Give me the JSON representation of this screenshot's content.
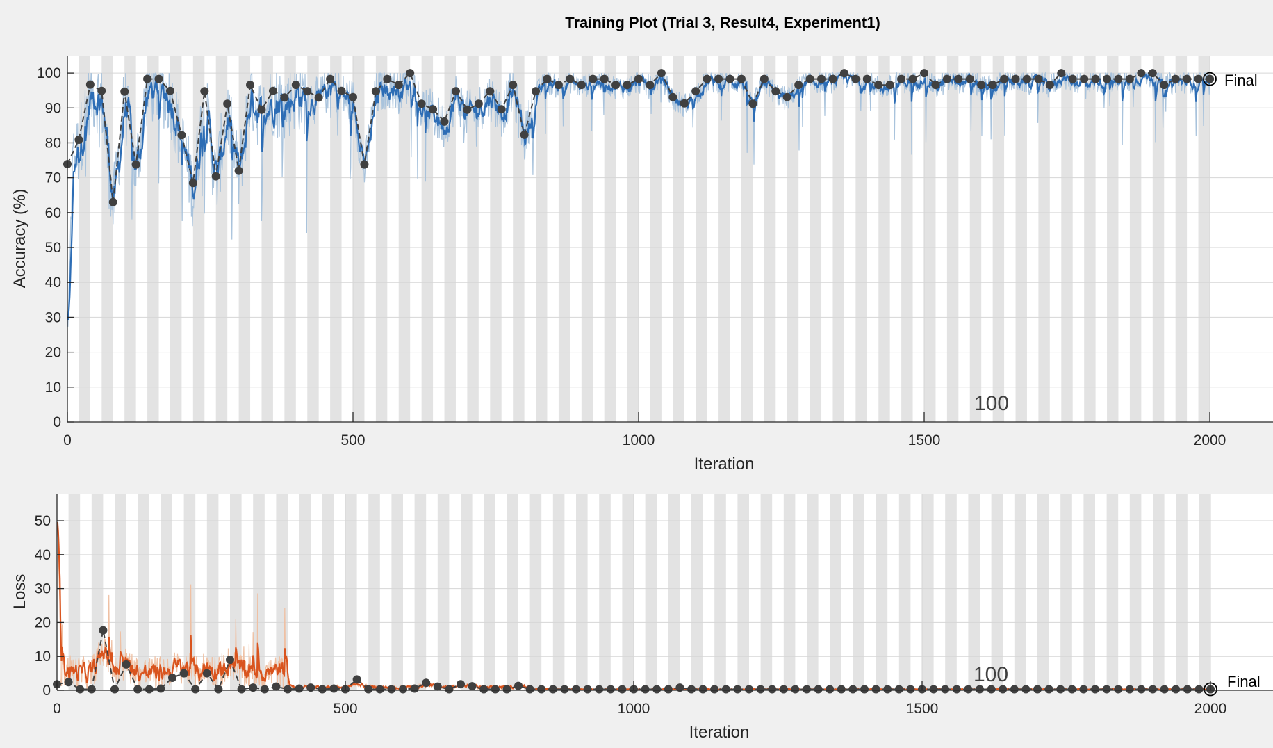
{
  "title": "Training Plot (Trial 3, Result4, Experiment1)",
  "final_label": "Final",
  "epoch_label": "100",
  "colors": {
    "background": "#f0f0f0",
    "plot_bg": "#ffffff",
    "epoch_band": "#e3e3e3",
    "accuracy_raw": "#a9c3dc",
    "accuracy_smoothed": "#2d6db5",
    "loss_raw": "#efc0a3",
    "loss_smoothed": "#d9541e",
    "validation": "#404040"
  },
  "chart_data": [
    {
      "type": "line",
      "name": "accuracy",
      "ylabel": "Accuracy (%)",
      "xlabel": "Iteration",
      "xlim": [
        0,
        2200
      ],
      "ylim": [
        0,
        105
      ],
      "xticks": [
        0,
        500,
        1000,
        1500,
        2000
      ],
      "yticks": [
        0,
        10,
        20,
        30,
        40,
        50,
        60,
        70,
        80,
        90,
        100
      ],
      "epochs": 100,
      "iterations_per_epoch": 20,
      "grid": true,
      "validation": {
        "x": [
          0,
          20,
          40,
          60,
          80,
          100,
          120,
          140,
          160,
          180,
          200,
          220,
          240,
          260,
          280,
          300,
          320,
          340,
          360,
          380,
          400,
          420,
          440,
          460,
          480,
          500,
          520,
          540,
          560,
          580,
          600,
          620,
          640,
          660,
          680,
          700,
          720,
          740,
          760,
          780,
          800,
          820,
          840,
          860,
          880,
          900,
          920,
          940,
          960,
          980,
          1000,
          1020,
          1040,
          1060,
          1080,
          1100,
          1120,
          1140,
          1160,
          1180,
          1200,
          1220,
          1240,
          1260,
          1280,
          1300,
          1320,
          1340,
          1360,
          1380,
          1400,
          1420,
          1440,
          1460,
          1480,
          1500,
          1520,
          1540,
          1560,
          1580,
          1600,
          1620,
          1640,
          1660,
          1680,
          1700,
          1720,
          1740,
          1760,
          1780,
          1800,
          1820,
          1840,
          1860,
          1880,
          1900,
          1920,
          1940,
          1960,
          1980,
          2000
        ],
        "y": [
          73.9,
          80.9,
          96.7,
          94.9,
          63.0,
          94.7,
          73.8,
          98.3,
          98.3,
          94.9,
          82.2,
          68.5,
          94.8,
          70.4,
          91.2,
          72.0,
          96.6,
          89.5,
          94.9,
          93.0,
          96.6,
          94.8,
          93.0,
          98.3,
          94.9,
          93.1,
          73.8,
          94.8,
          98.3,
          96.6,
          100.0,
          91.2,
          89.6,
          86.1,
          94.8,
          89.5,
          91.2,
          94.8,
          89.6,
          96.6,
          82.3,
          94.8,
          98.3,
          96.6,
          98.3,
          96.6,
          98.3,
          98.3,
          96.6,
          96.6,
          98.3,
          96.6,
          100.0,
          93.1,
          91.3,
          94.8,
          98.3,
          98.3,
          98.3,
          98.3,
          91.2,
          98.3,
          94.8,
          93.1,
          96.6,
          98.3,
          98.3,
          98.3,
          100.0,
          98.3,
          98.3,
          96.6,
          96.6,
          98.3,
          98.3,
          100.0,
          96.6,
          98.3,
          98.3,
          98.3,
          96.6,
          96.6,
          98.3,
          98.3,
          98.3,
          98.3,
          96.6,
          100.0,
          98.3,
          98.3,
          98.3,
          98.3,
          98.3,
          98.3,
          100.0,
          100.0,
          96.6,
          98.3,
          98.3,
          98.3,
          98.3
        ]
      },
      "final": {
        "x": 2000,
        "y": 98.3
      }
    },
    {
      "type": "line",
      "name": "loss",
      "ylabel": "Loss",
      "xlabel": "Iteration",
      "xlim": [
        0,
        2200
      ],
      "ylim": [
        0,
        58
      ],
      "xticks": [
        0,
        500,
        1000,
        1500,
        2000
      ],
      "yticks": [
        0,
        10,
        20,
        30,
        40,
        50
      ],
      "epochs": 100,
      "iterations_per_epoch": 20,
      "grid": true,
      "validation": {
        "x": [
          0,
          20,
          40,
          60,
          80,
          100,
          120,
          140,
          160,
          180,
          200,
          220,
          240,
          260,
          280,
          300,
          320,
          340,
          360,
          380,
          400,
          420,
          440,
          460,
          480,
          500,
          520,
          540,
          560,
          580,
          600,
          620,
          640,
          660,
          680,
          700,
          720,
          740,
          760,
          780,
          800,
          820,
          840,
          860,
          880,
          900,
          920,
          940,
          960,
          980,
          1000,
          1020,
          1040,
          1060,
          1080,
          1100,
          1120,
          1140,
          1160,
          1180,
          1200,
          1220,
          1240,
          1260,
          1280,
          1300,
          1320,
          1340,
          1360,
          1380,
          1400,
          1420,
          1440,
          1460,
          1480,
          1500,
          1520,
          1540,
          1560,
          1580,
          1600,
          1620,
          1640,
          1660,
          1680,
          1700,
          1720,
          1740,
          1760,
          1780,
          1800,
          1820,
          1840,
          1860,
          1880,
          1900,
          1920,
          1940,
          1960,
          1980,
          2000
        ],
        "y": [
          1.8,
          2.4,
          0.3,
          0.3,
          17.7,
          0.3,
          7.6,
          0.3,
          0.3,
          0.5,
          3.7,
          5.0,
          0.3,
          5.0,
          0.3,
          9.0,
          0.3,
          0.8,
          0.3,
          1.1,
          0.3,
          0.5,
          0.8,
          0.3,
          0.5,
          0.3,
          3.2,
          0.3,
          0.3,
          0.3,
          0.3,
          0.5,
          2.2,
          1.1,
          0.3,
          1.8,
          1.2,
          0.3,
          0.3,
          0.3,
          1.3,
          0.3,
          0.3,
          0.3,
          0.3,
          0.3,
          0.3,
          0.3,
          0.3,
          0.3,
          0.3,
          0.3,
          0.3,
          0.3,
          0.8,
          0.3,
          0.3,
          0.3,
          0.3,
          0.3,
          0.3,
          0.3,
          0.3,
          0.3,
          0.3,
          0.3,
          0.3,
          0.3,
          0.3,
          0.3,
          0.3,
          0.3,
          0.3,
          0.3,
          0.3,
          0.3,
          0.3,
          0.3,
          0.3,
          0.3,
          0.3,
          0.3,
          0.3,
          0.3,
          0.3,
          0.3,
          0.3,
          0.3,
          0.3,
          0.3,
          0.3,
          0.3,
          0.3,
          0.3,
          0.3,
          0.3,
          0.3,
          0.3,
          0.3,
          0.3,
          0.3
        ]
      },
      "final": {
        "x": 2000,
        "y": 0.3
      }
    }
  ]
}
